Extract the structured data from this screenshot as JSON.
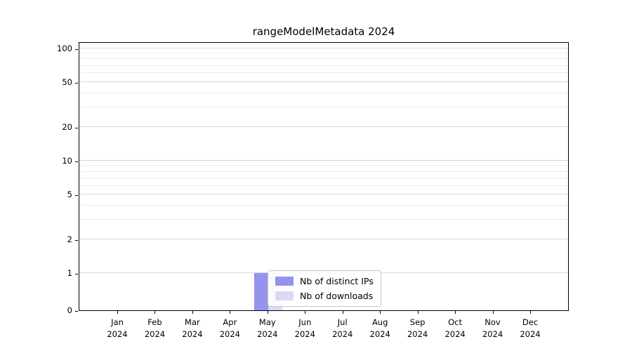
{
  "chart_data": {
    "type": "bar",
    "title": "rangeModelMetadata 2024",
    "categories": [
      "Jan",
      "Feb",
      "Mar",
      "Apr",
      "May",
      "Jun",
      "Jul",
      "Aug",
      "Sep",
      "Oct",
      "Nov",
      "Dec"
    ],
    "category_year": "2024",
    "series": [
      {
        "name": "Nb of distinct IPs",
        "color": "#9494ec",
        "values": [
          0,
          0,
          0,
          0,
          1,
          0,
          0,
          0,
          0,
          0,
          0,
          0
        ]
      },
      {
        "name": "Nb of downloads",
        "color": "#dadaf7",
        "values": [
          0,
          0,
          0,
          0,
          1,
          0,
          0,
          0,
          0,
          0,
          0,
          0
        ]
      }
    ],
    "y_ticks": [
      0,
      1,
      2,
      5,
      10,
      20,
      50,
      100
    ],
    "y_minor_gridlines": [
      2,
      3,
      4,
      6,
      7,
      8,
      9,
      20,
      30,
      40,
      60,
      70,
      80,
      90
    ],
    "y_scale": "log",
    "ylim": [
      0,
      115
    ],
    "grid": true,
    "legend_position": "inside-bottom-center",
    "colors": {
      "grid_minor": "#ececec",
      "grid_major": "#d8d8d8",
      "axis": "#000000",
      "legend_border": "#c9c9c9",
      "background": "#ffffff"
    }
  }
}
